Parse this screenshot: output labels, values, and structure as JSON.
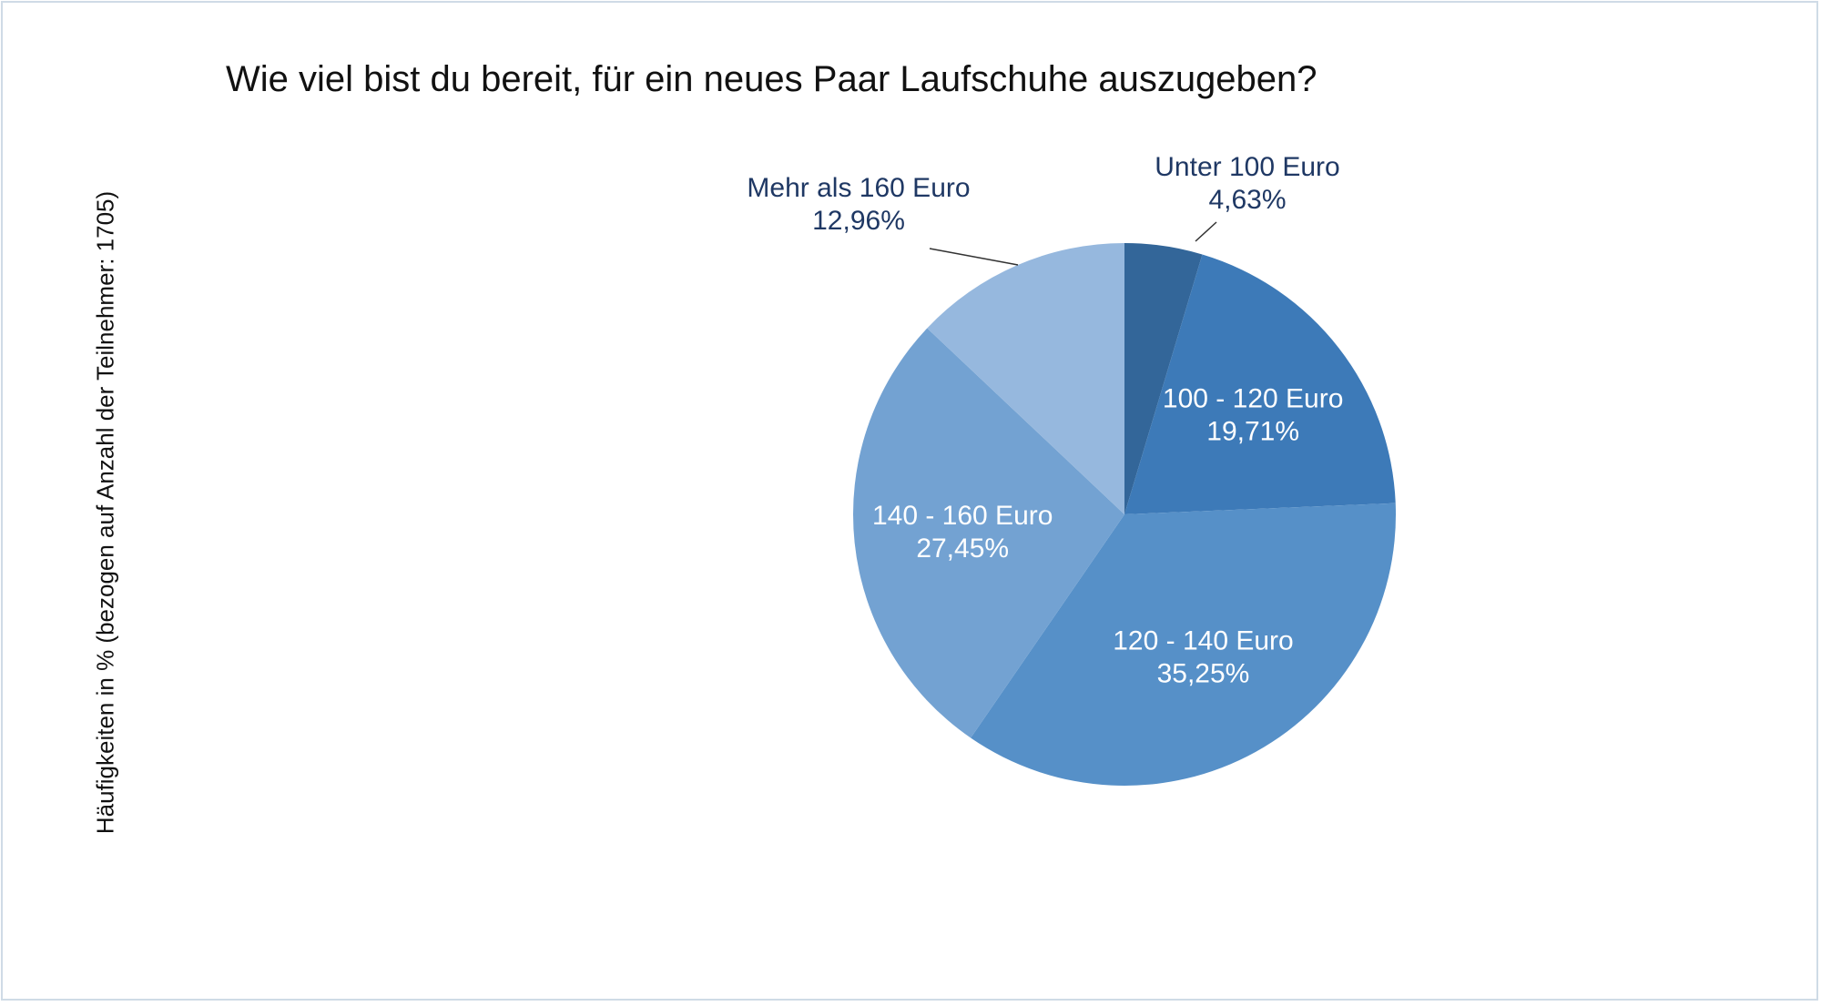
{
  "chart_data": {
    "type": "pie",
    "title": "Wie viel bist du bereit, für ein neues Paar Laufschuhe auszugeben?",
    "ylabel": "Häufigkeiten in % (bezogen auf Anzahl der Teilnehmer: 1705)",
    "slices": [
      {
        "label": "Unter 100 Euro",
        "value": 4.63,
        "value_label": "4,63%",
        "color": "#336699",
        "label_color": "#1f3864",
        "label_outside": true
      },
      {
        "label": "100 - 120 Euro",
        "value": 19.71,
        "value_label": "19,71%",
        "color": "#3d7ab8",
        "label_color": "#ffffff",
        "label_outside": false
      },
      {
        "label": "120 - 140 Euro",
        "value": 35.25,
        "value_label": "35,25%",
        "color": "#5690c8",
        "label_color": "#ffffff",
        "label_outside": false
      },
      {
        "label": "140 - 160 Euro",
        "value": 27.45,
        "value_label": "27,45%",
        "color": "#73a2d2",
        "label_color": "#ffffff",
        "label_outside": false
      },
      {
        "label": "Mehr als 160 Euro",
        "value": 12.96,
        "value_label": "12,96%",
        "color": "#96b8de",
        "label_color": "#1f3864",
        "label_outside": true
      }
    ]
  }
}
